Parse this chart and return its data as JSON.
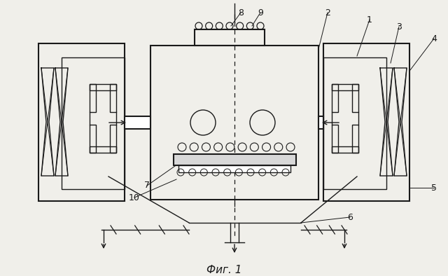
{
  "bg_color": "#f0efea",
  "line_color": "#1a1a1a",
  "title": "Фиг. 1",
  "figsize": [
    6.4,
    3.94
  ],
  "dpi": 100
}
